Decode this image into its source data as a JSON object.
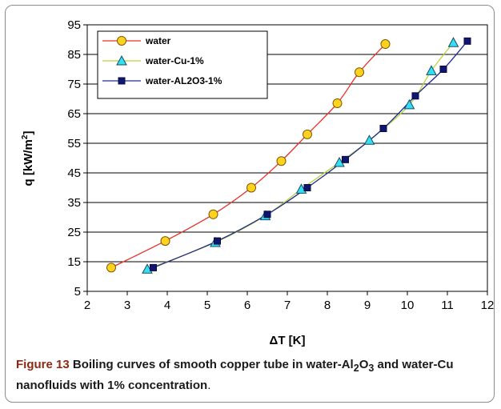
{
  "chart_data": {
    "type": "line",
    "xlabel": "ΔT [K]",
    "ylabel_main": "q [kW/m",
    "ylabel_sup": "2",
    "ylabel_close": "]",
    "xlim": [
      2,
      12
    ],
    "ylim": [
      5,
      95
    ],
    "xticks": [
      2,
      3,
      4,
      5,
      6,
      7,
      8,
      9,
      10,
      11,
      12
    ],
    "yticks": [
      5,
      15,
      25,
      35,
      45,
      55,
      65,
      75,
      85,
      95
    ],
    "grid": "horizontal",
    "legend_position": "top-left",
    "series": [
      {
        "name": "water",
        "marker": "circle",
        "line_color": "#e8302a",
        "marker_fill": "#ffd21f",
        "marker_edge": "#7a5a00",
        "x": [
          2.6,
          3.95,
          5.15,
          6.1,
          6.85,
          7.5,
          8.25,
          8.8,
          9.45
        ],
        "y": [
          13,
          22,
          31,
          40,
          49,
          58,
          68.5,
          79,
          88.5
        ]
      },
      {
        "name": "water-Cu-1%",
        "marker": "triangle",
        "line_color": "#b5d43a",
        "marker_fill": "#33e0f2",
        "marker_edge": "#1a4a66",
        "x": [
          3.5,
          5.2,
          6.45,
          7.35,
          8.3,
          9.05,
          10.05,
          10.6,
          11.15
        ],
        "y": [
          12.5,
          21.5,
          30.5,
          39.5,
          48.5,
          56,
          68,
          79.5,
          89
        ]
      },
      {
        "name": "water-AL2O3-1%",
        "marker": "square",
        "line_color": "#1f2a8f",
        "marker_fill": "#10156e",
        "marker_edge": "#0a0d45",
        "x": [
          3.65,
          5.25,
          6.5,
          7.5,
          8.45,
          9.4,
          10.2,
          10.9,
          11.5
        ],
        "y": [
          13,
          22,
          31,
          40,
          49.5,
          60,
          71,
          80,
          89.5
        ]
      }
    ]
  },
  "caption": {
    "label": "Figure 13",
    "text_before": " Boiling curves of smooth copper tube in water-Al",
    "sub1": "2",
    "mid1": "O",
    "sub2": "3",
    "text_after": " and water-Cu nanofluids with 1% concentration",
    "end": "."
  }
}
